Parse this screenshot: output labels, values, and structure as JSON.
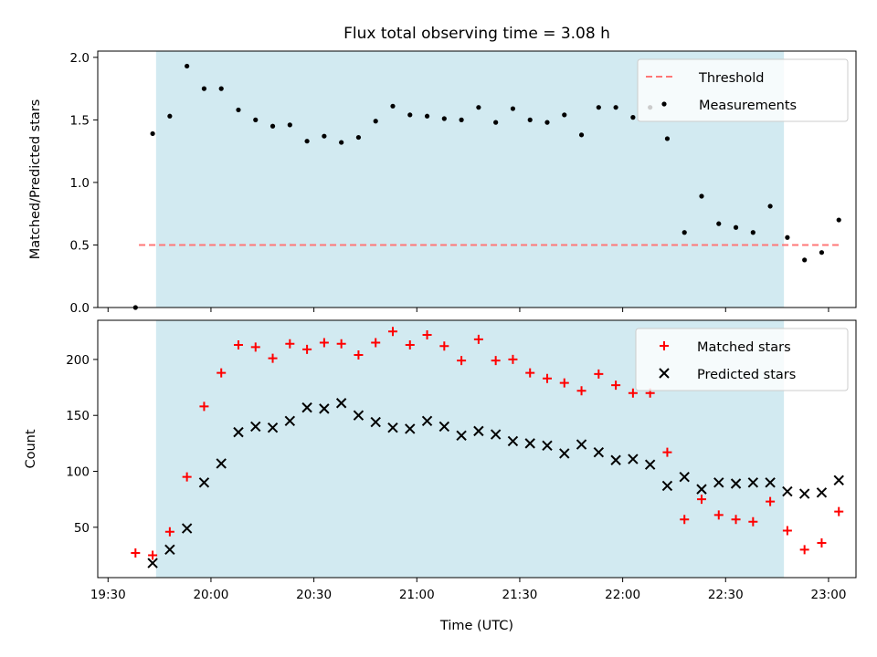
{
  "title": "Flux total observing time = 3.08 h",
  "chart_data": [
    {
      "type": "scatter",
      "ylabel": "Matched/Predicted stars",
      "xlabel": "",
      "x_range": [
        "19:27",
        "23:08"
      ],
      "ylim": [
        0,
        2.05
      ],
      "y_ticks": [
        "0.0",
        "0.5",
        "1.0",
        "1.5",
        "2.0"
      ],
      "shaded_interval": [
        "19:44",
        "22:47"
      ],
      "shade_color": "#add8e6",
      "threshold": {
        "name": "Threshold",
        "value": 0.5,
        "x_start": "19:39",
        "x_end": "23:03",
        "color": "#ff7777"
      },
      "legend": [
        "Threshold",
        "Measurements"
      ],
      "legend_position": "top-right",
      "series": [
        {
          "name": "Measurements",
          "color": "#000000",
          "marker": "dot",
          "x": [
            "19:38",
            "19:43",
            "19:48",
            "19:53",
            "19:58",
            "20:03",
            "20:08",
            "20:13",
            "20:18",
            "20:23",
            "20:28",
            "20:33",
            "20:38",
            "20:43",
            "20:48",
            "20:53",
            "20:58",
            "21:03",
            "21:08",
            "21:13",
            "21:18",
            "21:23",
            "21:28",
            "21:33",
            "21:38",
            "21:43",
            "21:48",
            "21:53",
            "21:58",
            "22:03",
            "22:08",
            "22:13",
            "22:18",
            "22:23",
            "22:28",
            "22:33",
            "22:38",
            "22:43",
            "22:48",
            "22:53",
            "22:58",
            "23:03"
          ],
          "values": [
            0.0,
            1.39,
            1.53,
            1.93,
            1.75,
            1.75,
            1.58,
            1.5,
            1.45,
            1.46,
            1.33,
            1.37,
            1.32,
            1.36,
            1.49,
            1.61,
            1.54,
            1.53,
            1.51,
            1.5,
            1.6,
            1.48,
            1.59,
            1.5,
            1.48,
            1.54,
            1.38,
            1.6,
            1.6,
            1.52,
            1.6,
            1.35,
            0.6,
            0.89,
            0.67,
            0.64,
            0.6,
            0.81,
            0.56,
            0.38,
            0.44,
            0.7
          ]
        }
      ]
    },
    {
      "type": "scatter",
      "xlabel": "Time (UTC)",
      "ylabel": "Count",
      "x_ticks": [
        "19:30",
        "20:00",
        "20:30",
        "21:00",
        "21:30",
        "22:00",
        "22:30",
        "23:00"
      ],
      "ylim": [
        5,
        235
      ],
      "y_ticks": [
        "50",
        "100",
        "150",
        "200"
      ],
      "shaded_interval": [
        "19:44",
        "22:47"
      ],
      "shade_color": "#add8e6",
      "legend": [
        "Matched stars",
        "Predicted stars"
      ],
      "legend_position": "top-right",
      "series": [
        {
          "name": "Matched stars",
          "color": "#ff0000",
          "marker": "plus",
          "x": [
            "19:38",
            "19:43",
            "19:48",
            "19:53",
            "19:58",
            "20:03",
            "20:08",
            "20:13",
            "20:18",
            "20:23",
            "20:28",
            "20:33",
            "20:38",
            "20:43",
            "20:48",
            "20:53",
            "20:58",
            "21:03",
            "21:08",
            "21:13",
            "21:18",
            "21:23",
            "21:28",
            "21:33",
            "21:38",
            "21:43",
            "21:48",
            "21:53",
            "21:58",
            "22:03",
            "22:08",
            "22:13",
            "22:18",
            "22:23",
            "22:28",
            "22:33",
            "22:38",
            "22:43",
            "22:48",
            "22:53",
            "22:58",
            "23:03"
          ],
          "values": [
            27,
            25,
            46,
            95,
            158,
            188,
            213,
            211,
            201,
            214,
            209,
            215,
            214,
            204,
            215,
            225,
            213,
            222,
            212,
            199,
            218,
            199,
            200,
            188,
            183,
            179,
            172,
            187,
            177,
            170,
            170,
            117,
            57,
            75,
            61,
            57,
            55,
            73,
            47,
            30,
            36,
            64
          ]
        },
        {
          "name": "Predicted stars",
          "color": "#000000",
          "marker": "x",
          "x": [
            "19:43",
            "19:48",
            "19:53",
            "19:58",
            "20:03",
            "20:08",
            "20:13",
            "20:18",
            "20:23",
            "20:28",
            "20:33",
            "20:38",
            "20:43",
            "20:48",
            "20:53",
            "20:58",
            "21:03",
            "21:08",
            "21:13",
            "21:18",
            "21:23",
            "21:28",
            "21:33",
            "21:38",
            "21:43",
            "21:48",
            "21:53",
            "21:58",
            "22:03",
            "22:08",
            "22:13",
            "22:18",
            "22:23",
            "22:28",
            "22:33",
            "22:38",
            "22:43",
            "22:48",
            "22:53",
            "22:58",
            "23:03"
          ],
          "values": [
            18,
            30,
            49,
            90,
            107,
            135,
            140,
            139,
            145,
            157,
            156,
            161,
            150,
            144,
            139,
            138,
            145,
            140,
            132,
            136,
            133,
            127,
            125,
            123,
            116,
            124,
            117,
            110,
            111,
            106,
            87,
            95,
            84,
            90,
            89,
            90,
            90,
            82,
            80,
            81,
            92
          ]
        }
      ]
    }
  ]
}
